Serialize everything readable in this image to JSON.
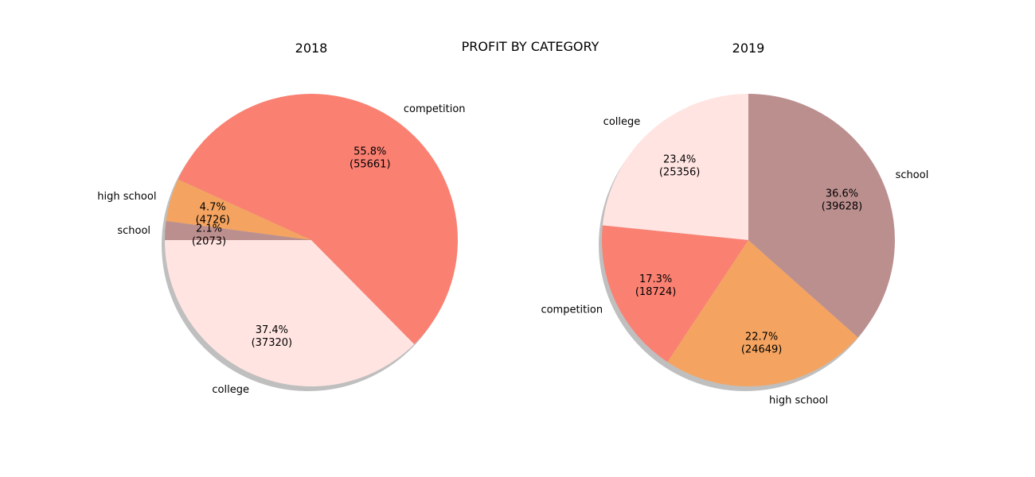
{
  "chart_data": [
    {
      "type": "pie",
      "title": "2018",
      "suptitle": "PROFIT BY CATEGORY",
      "slices": [
        {
          "label": "college",
          "value": 37320,
          "percent_label": "37.4%",
          "value_label": "(37320)",
          "color": "#ffe4e1"
        },
        {
          "label": "competition",
          "value": 55661,
          "percent_label": "55.8%",
          "value_label": "(55661)",
          "color": "#fa8072"
        },
        {
          "label": "high school",
          "value": 4726,
          "percent_label": "4.7%",
          "value_label": "(4726)",
          "color": "#f4a460"
        },
        {
          "label": "school",
          "value": 2073,
          "percent_label": "2.1%",
          "value_label": "(2073)",
          "color": "#bc8f8f"
        }
      ],
      "shadow": true
    },
    {
      "type": "pie",
      "title": "2019",
      "slices": [
        {
          "label": "college",
          "value": 25356,
          "percent_label": "23.4%",
          "value_label": "(25356)",
          "color": "#ffe4e1"
        },
        {
          "label": "competition",
          "value": 18724,
          "percent_label": "17.3%",
          "value_label": "(18724)",
          "color": "#fa8072"
        },
        {
          "label": "high school",
          "value": 24649,
          "percent_label": "22.7%",
          "value_label": "(24649)",
          "color": "#f4a460"
        },
        {
          "label": "school",
          "value": 39628,
          "percent_label": "36.6%",
          "value_label": "(39628)",
          "color": "#bc8f8f"
        }
      ],
      "shadow": true
    }
  ],
  "page": {
    "suptitle": "PROFIT BY CATEGORY"
  }
}
